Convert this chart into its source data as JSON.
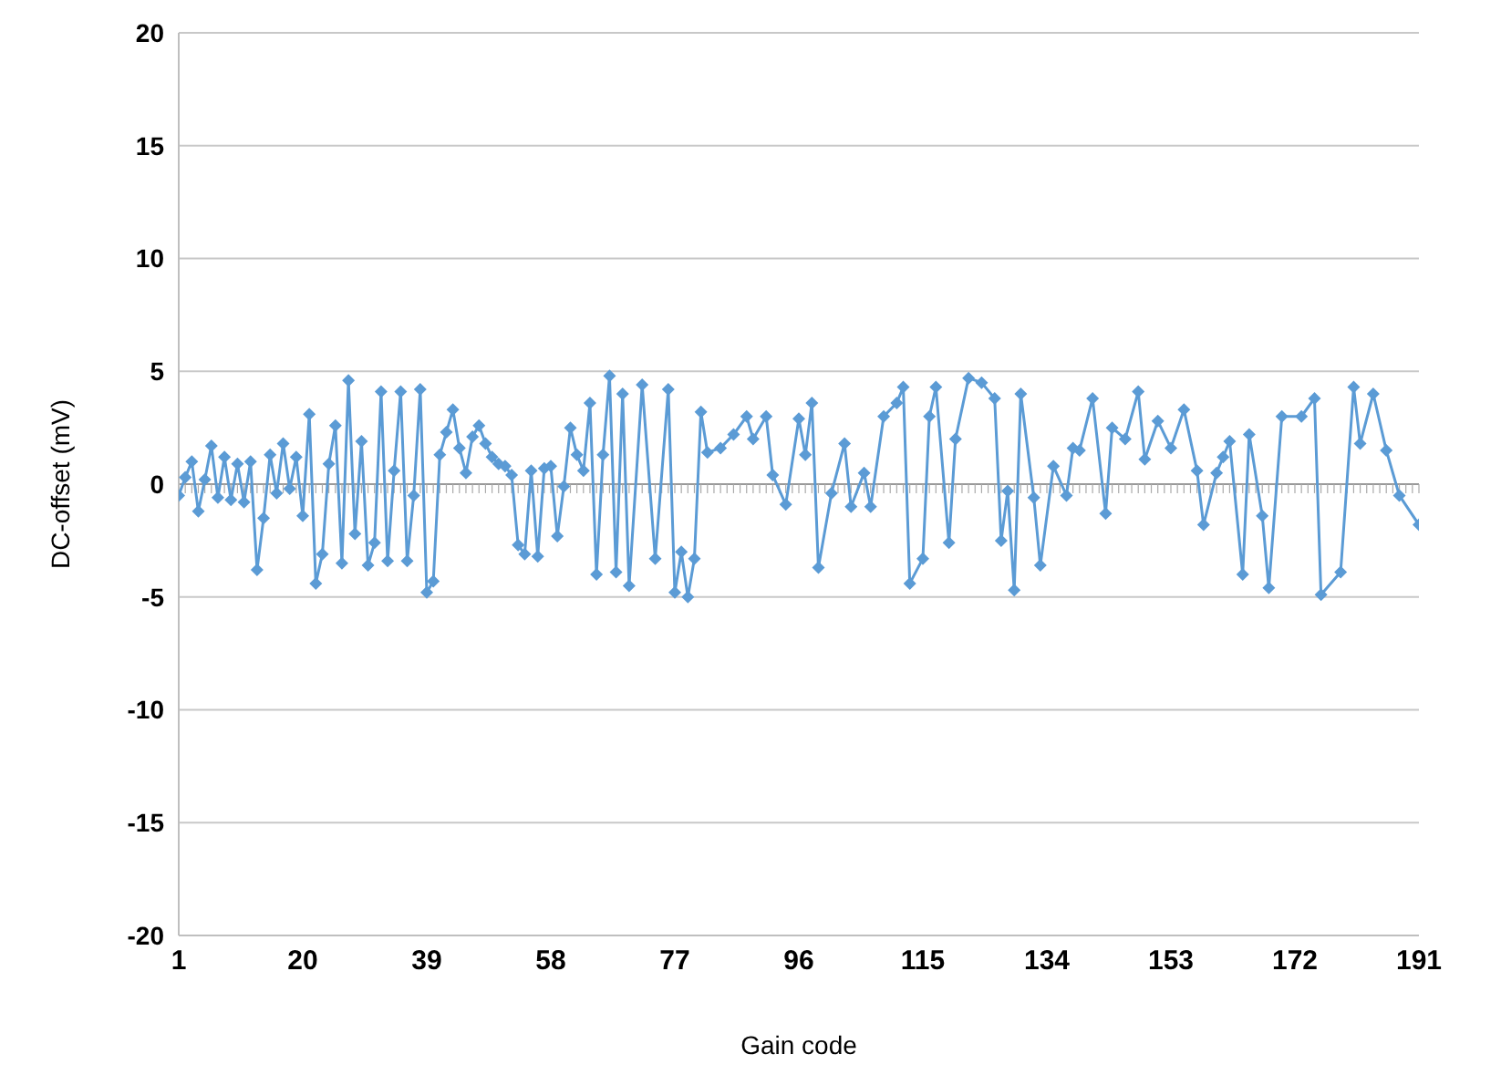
{
  "chart_data": {
    "type": "line",
    "xlabel": "Gain code",
    "ylabel": "DC-offset (mV)",
    "xlim": [
      1,
      191
    ],
    "xticks": [
      1,
      20,
      39,
      58,
      77,
      96,
      115,
      134,
      153,
      172,
      191
    ],
    "ylim": [
      -20,
      20
    ],
    "yticks": [
      -20,
      -15,
      -10,
      -5,
      0,
      5,
      10,
      15,
      20
    ],
    "grid": "y",
    "marker": "diamond",
    "legend": false,
    "series": [
      {
        "color": "#5b9bd5",
        "x": [
          1,
          2,
          3,
          4,
          5,
          6,
          7,
          8,
          9,
          10,
          11,
          12,
          13,
          14,
          15,
          16,
          17,
          18,
          19,
          20,
          21,
          22,
          23,
          24,
          25,
          26,
          27,
          28,
          29,
          30,
          31,
          32,
          33,
          34,
          35,
          36,
          37,
          38,
          39,
          40,
          41,
          42,
          43,
          44,
          45,
          46,
          47,
          48,
          49,
          50,
          51,
          52,
          53,
          54,
          55,
          56,
          57,
          58,
          59,
          60,
          61,
          62,
          63,
          64,
          65,
          66,
          67,
          68,
          69,
          70,
          72,
          74,
          76,
          77,
          78,
          79,
          80,
          81,
          82,
          84,
          86,
          88,
          89,
          91,
          92,
          94,
          96,
          97,
          98,
          99,
          101,
          103,
          104,
          106,
          107,
          109,
          111,
          112,
          113,
          115,
          116,
          117,
          119,
          120,
          122,
          124,
          126,
          127,
          128,
          129,
          130,
          132,
          133,
          135,
          137,
          138,
          139,
          141,
          143,
          144,
          146,
          148,
          149,
          151,
          153,
          155,
          157,
          158,
          160,
          161,
          162,
          164,
          165,
          167,
          168,
          170,
          173,
          175,
          176,
          179,
          181,
          182,
          184,
          186,
          188,
          191
        ],
        "values": [
          -0.5,
          0.3,
          1.0,
          -1.2,
          0.2,
          1.7,
          -0.6,
          1.2,
          -0.7,
          0.9,
          -0.8,
          1.0,
          -3.8,
          -1.5,
          1.3,
          -0.4,
          1.8,
          -0.2,
          1.2,
          -1.4,
          3.1,
          -4.4,
          -3.1,
          0.9,
          2.6,
          -3.5,
          4.6,
          -2.2,
          1.9,
          -3.6,
          -2.6,
          4.1,
          -3.4,
          0.6,
          4.1,
          -3.4,
          -0.5,
          4.2,
          -4.8,
          -4.3,
          1.3,
          2.3,
          3.3,
          1.6,
          0.5,
          2.1,
          2.6,
          1.8,
          1.2,
          0.9,
          0.8,
          0.4,
          -2.7,
          -3.1,
          0.6,
          -3.2,
          0.7,
          0.8,
          -2.3,
          -0.1,
          2.5,
          1.3,
          0.6,
          3.6,
          -4.0,
          1.3,
          4.8,
          -3.9,
          4.0,
          -4.5,
          4.4,
          -3.3,
          4.2,
          -4.8,
          -3.0,
          -5.0,
          -3.3,
          3.2,
          1.4,
          1.6,
          2.2,
          3.0,
          2.0,
          3.0,
          0.4,
          -0.9,
          2.9,
          1.3,
          3.6,
          -3.7,
          -0.4,
          1.8,
          -1.0,
          0.5,
          -1.0,
          3.0,
          3.6,
          4.3,
          -4.4,
          -3.3,
          3.0,
          4.3,
          -2.6,
          2.0,
          4.7,
          4.5,
          3.8,
          -2.5,
          -0.3,
          -4.7,
          4.0,
          -0.6,
          -3.6,
          0.8,
          -0.5,
          1.6,
          1.5,
          3.8,
          -1.3,
          2.5,
          2.0,
          4.1,
          1.1,
          2.8,
          1.6,
          3.3,
          0.6,
          -1.8,
          0.5,
          1.2,
          1.9,
          -4.0,
          2.2,
          -1.4,
          -4.6,
          3.0,
          3.0,
          3.8,
          -4.9,
          -3.9,
          4.3,
          1.8,
          4.0,
          1.5,
          -0.5,
          -1.8
        ]
      }
    ]
  }
}
